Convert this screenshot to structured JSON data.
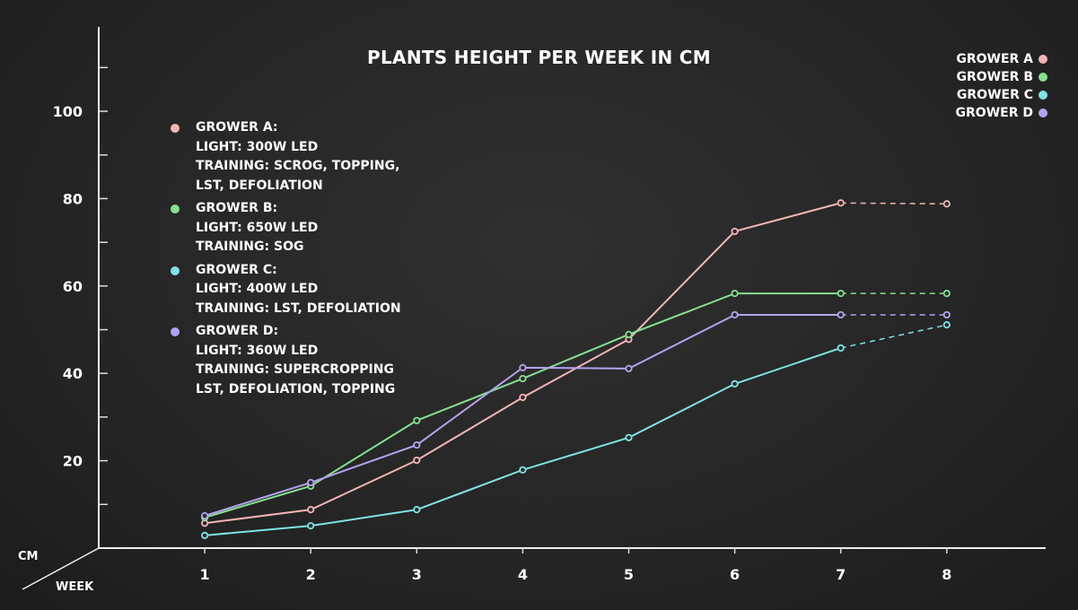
{
  "chart_data": {
    "type": "line",
    "title": "PLANTS HEIGHT PER WEEK IN CM",
    "xlabel": "WEEK",
    "ylabel": "CM",
    "x": [
      1,
      2,
      3,
      4,
      5,
      6,
      7,
      8
    ],
    "xlim": [
      0,
      8.5
    ],
    "ylim": [
      0,
      100
    ],
    "yticks": [
      20,
      40,
      60,
      80,
      100
    ],
    "grid": false,
    "legend_position": "top-right",
    "series": [
      {
        "name": "GROWER A",
        "color": "#f4b6b4",
        "values": [
          5.7,
          8.8,
          20.1,
          34.5,
          47.8,
          72.5,
          79,
          78.8
        ]
      },
      {
        "name": "GROWER B",
        "color": "#86e08e",
        "values": [
          7,
          14.2,
          29.2,
          38.8,
          48.9,
          58.3,
          58.3,
          58.3
        ]
      },
      {
        "name": "GROWER C",
        "color": "#7fe3e6",
        "values": [
          2.9,
          5.1,
          8.8,
          17.9,
          25.3,
          37.6,
          45.8,
          51.1
        ]
      },
      {
        "name": "GROWER D",
        "color": "#b4a3f0",
        "values": [
          7.4,
          15,
          23.6,
          41.3,
          41.1,
          53.4,
          53.4,
          53.4
        ]
      }
    ],
    "annotations": [
      {
        "color": "#f4b6b4",
        "lines": [
          "GROWER A:",
          "LIGHT: 300W LED",
          "TRAINING: SCROG, TOPPING,",
          "LST, DEFOLIATION"
        ]
      },
      {
        "color": "#86e08e",
        "lines": [
          "GROWER B:",
          "LIGHT: 650W LED",
          "TRAINING: SOG"
        ]
      },
      {
        "color": "#7fe3e6",
        "lines": [
          "GROWER C:",
          "LIGHT: 400W LED",
          "TRAINING: LST, DEFOLIATION"
        ]
      },
      {
        "color": "#b4a3f0",
        "lines": [
          "GROWER D:",
          "LIGHT: 360W LED",
          "TRAINING: SUPERCROPPING",
          "LST, DEFOLIATION, TOPPING"
        ]
      }
    ]
  }
}
